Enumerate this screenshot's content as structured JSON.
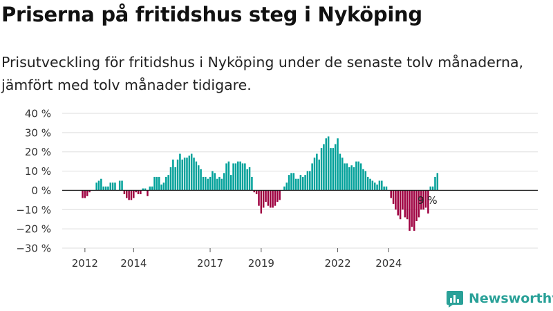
{
  "title": "Priserna på fritidshus steg i Nyköping",
  "subtitle": "Prisutveckling för fritidshus i Nyköping under de senaste tolv månaderna, jämfört med tolv månader tidigare.",
  "brand": {
    "name": "Newsworthy",
    "icon": "newsworthy-logo-icon"
  },
  "colors": {
    "positive": "#00a19a",
    "negative": "#9e0040",
    "grid": "#dddddd",
    "axis": "#222222"
  },
  "chart_data": {
    "type": "bar",
    "ylim": [
      -30,
      40
    ],
    "yticks": [
      -30,
      -20,
      -10,
      0,
      10,
      20,
      30,
      40
    ],
    "ytick_labels": [
      "−30 %",
      "−20 %",
      "−10 %",
      "0 %",
      "10 %",
      "20 %",
      "30 %",
      "40 %"
    ],
    "xticks": [
      {
        "label": "2012",
        "index": 1
      },
      {
        "label": "2014",
        "index": 22
      },
      {
        "label": "2017",
        "index": 55
      },
      {
        "label": "2019",
        "index": 77
      },
      {
        "label": "2022",
        "index": 110
      },
      {
        "label": "2024",
        "index": 132
      }
    ],
    "values": [
      -4,
      -4,
      -3,
      -1,
      0,
      0,
      4,
      5,
      6,
      2,
      2,
      2,
      4,
      4,
      4,
      0,
      5,
      5,
      -2,
      -4,
      -5,
      -5,
      -4,
      -1,
      -2,
      -2,
      1,
      1,
      -3,
      2,
      2,
      7,
      7,
      7,
      3,
      4,
      7,
      8,
      12,
      16,
      12,
      16,
      19,
      16,
      17,
      17,
      18,
      19,
      17,
      15,
      13,
      11,
      7,
      7,
      6,
      7,
      10,
      9,
      6,
      7,
      6,
      9,
      14,
      15,
      8,
      14,
      14,
      15,
      15,
      14,
      14,
      11,
      12,
      7,
      -1,
      -2,
      -8,
      -12,
      -9,
      -6,
      -8,
      -9,
      -9,
      -8,
      -6,
      -5,
      0,
      2,
      4,
      8,
      9,
      9,
      6,
      6,
      8,
      7,
      8,
      10,
      10,
      14,
      17,
      19,
      16,
      22,
      24,
      27,
      28,
      22,
      22,
      24,
      27,
      19,
      17,
      14,
      14,
      12,
      13,
      12,
      15,
      15,
      14,
      11,
      10,
      7,
      6,
      5,
      4,
      3,
      5,
      5,
      2,
      2,
      0,
      -4,
      -7,
      -10,
      -13,
      -15,
      -10,
      -14,
      -15,
      -21,
      -19,
      -21,
      -16,
      -14,
      -10,
      -10,
      -9,
      -12,
      2,
      2,
      7,
      9
    ],
    "annotations": [
      {
        "text": "9 %",
        "index": 149
      }
    ]
  }
}
